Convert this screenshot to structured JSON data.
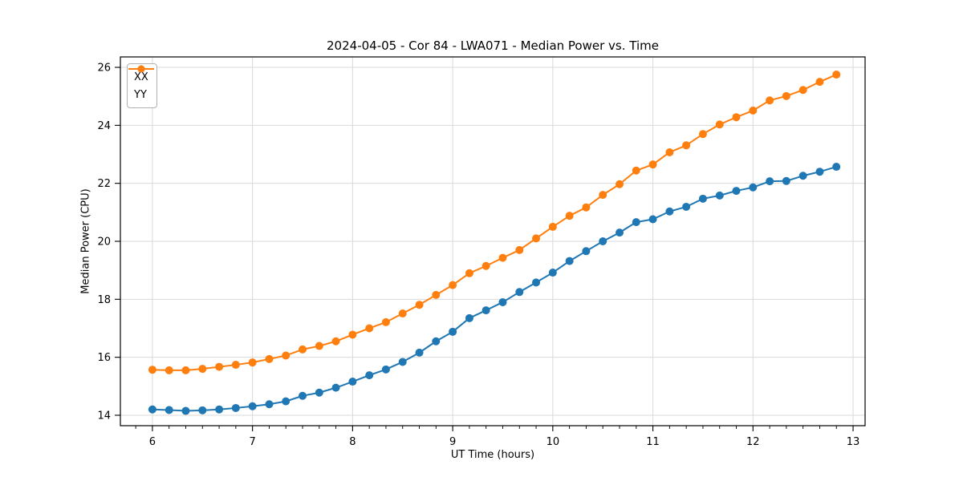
{
  "chart_data": {
    "type": "line",
    "title": "2024-04-05 - Cor 84 - LWA071 - Median Power vs. Time",
    "xlabel": "UT Time (hours)",
    "ylabel": "Median Power (CPU)",
    "x": [
      6.0,
      6.167,
      6.333,
      6.5,
      6.667,
      6.833,
      7.0,
      7.167,
      7.333,
      7.5,
      7.667,
      7.833,
      8.0,
      8.167,
      8.333,
      8.5,
      8.667,
      8.833,
      9.0,
      9.167,
      9.333,
      9.5,
      9.667,
      9.833,
      10.0,
      10.167,
      10.333,
      10.5,
      10.667,
      10.833,
      11.0,
      11.167,
      11.333,
      11.5,
      11.667,
      11.833,
      12.0,
      12.167,
      12.333,
      12.5,
      12.667,
      12.833
    ],
    "series": [
      {
        "name": "XX",
        "color": "#1f77b4",
        "values": [
          14.2,
          14.18,
          14.15,
          14.17,
          14.2,
          14.25,
          14.31,
          14.38,
          14.48,
          14.67,
          14.78,
          14.95,
          15.16,
          15.38,
          15.58,
          15.84,
          16.16,
          16.55,
          16.88,
          17.35,
          17.62,
          17.9,
          18.25,
          18.58,
          18.92,
          19.32,
          19.66,
          20.0,
          20.3,
          20.66,
          20.76,
          21.03,
          21.19,
          21.47,
          21.58,
          21.74,
          21.86,
          22.07,
          22.08,
          22.26,
          22.4,
          22.57
        ]
      },
      {
        "name": "YY",
        "color": "#ff7f0e",
        "values": [
          15.57,
          15.55,
          15.55,
          15.6,
          15.67,
          15.74,
          15.82,
          15.94,
          16.06,
          16.27,
          16.39,
          16.55,
          16.78,
          17.0,
          17.21,
          17.51,
          17.81,
          18.15,
          18.49,
          18.9,
          19.15,
          19.43,
          19.7,
          20.1,
          20.5,
          20.88,
          21.17,
          21.6,
          21.97,
          22.44,
          22.65,
          23.07,
          23.31,
          23.7,
          24.03,
          24.28,
          24.51,
          24.86,
          25.01,
          25.22,
          25.5,
          25.75
        ]
      }
    ],
    "xlim": [
      5.68,
      13.12
    ],
    "ylim": [
      13.64,
      26.36
    ],
    "xticks": [
      6,
      7,
      8,
      9,
      10,
      11,
      12,
      13
    ],
    "yticks": [
      14,
      16,
      18,
      20,
      22,
      24,
      26
    ],
    "x_minor_step": 0.1666667,
    "grid": true,
    "grid_color": "#d9d9d9",
    "marker": "circle",
    "legend": {
      "position": "upper left",
      "entries": [
        "XX",
        "YY"
      ]
    }
  }
}
